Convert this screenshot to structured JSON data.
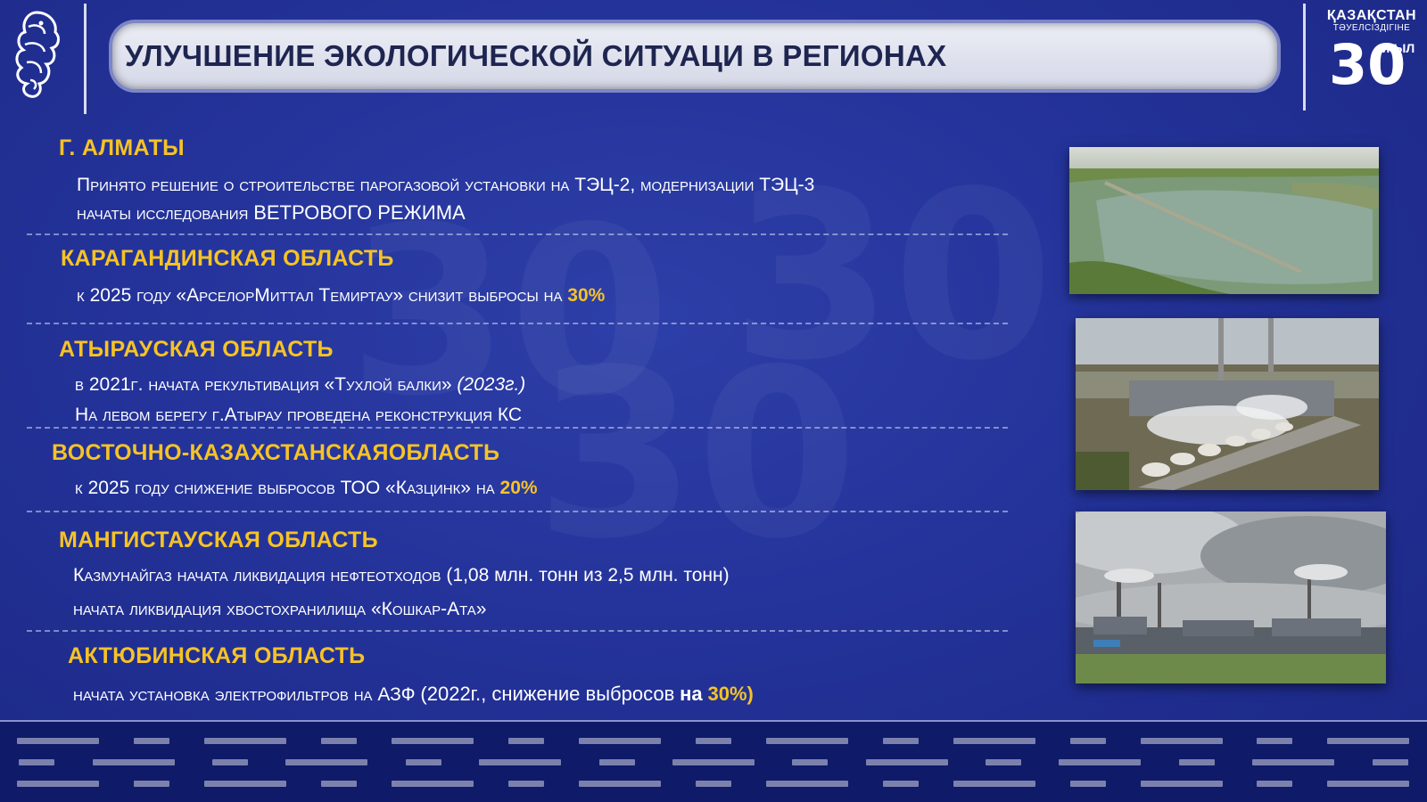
{
  "title": "УЛУЧШЕНИЕ ЭКОЛОГИЧЕСКОЙ СИТУАЦИ В РЕГИОНАХ",
  "jubilee": {
    "country": "ҚАЗАҚСТАН",
    "subtitle": "ТӘУЕЛСІЗДІГІНЕ",
    "number": "30",
    "years": "ЖЫЛ"
  },
  "regions": [
    {
      "heading": "Г. АЛМАТЫ",
      "lines": [
        "Принято решение о строительстве парогазовой установки на ТЭЦ-2, модернизации ТЭЦ-3",
        "начаты исследования",
        "ВЕТРОВОГО РЕЖИМА"
      ]
    },
    {
      "heading": "КАРАГАНДИНСКАЯ ОБЛАСТЬ",
      "lines": [
        "к 2025 году «АрселорМиттал Темиртау» снизит выбросы на",
        "30%"
      ]
    },
    {
      "heading": "АТЫРАУСКАЯ ОБЛАСТЬ",
      "lines": [
        "в 2021г. начата рекультивация «Тухлой балки»",
        "(2023г.)",
        "На левом берегу г.Атырау проведена реконструкция КС"
      ]
    },
    {
      "heading": "ВОСТОЧНО-КАЗАХСТАНСКАЯОБЛАСТЬ",
      "lines": [
        "к 2025 году снижение выбросов ТОО «Казцинк» на",
        "20%"
      ]
    },
    {
      "heading": "МАНГИСТАУСКАЯ ОБЛАСТЬ",
      "lines": [
        "Казмунайгаз начата ликвидация нефтеотходов",
        "(1,08 млн. тонн из 2,5 млн. тонн)",
        "начата ликвидация хвостохранилища «Кошкар-Ата»"
      ]
    },
    {
      "heading": "АКТЮБИНСКАЯ ОБЛАСТЬ",
      "lines": [
        "начата установка электрофильтров на АЗФ",
        "(2022г., снижение выбросов",
        "на",
        "30%)"
      ]
    }
  ],
  "colors": {
    "background": "#24339a",
    "heading": "#f6c325",
    "text": "#ffffff",
    "footer": "#0f1a68"
  }
}
